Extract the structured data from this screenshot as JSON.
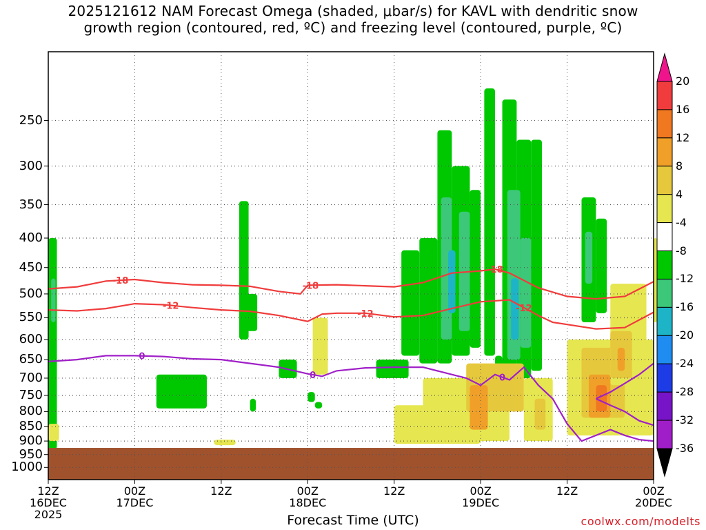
{
  "title": {
    "line1": "2025121612 NAM Forecast Omega (shaded, μbar/s) for KAVL with dendritic snow",
    "line2": "growth region (contoured, red, ºC) and freezing level (contoured, purple, ºC)"
  },
  "credit": "coolwx.com/modelts",
  "chart_data": {
    "type": "heatmap",
    "title": "2025121612 NAM Forecast Omega (shaded, μbar/s) for KAVL with dendritic snow growth region (contoured, red, ºC) and freezing level (contoured, purple, ºC)",
    "xlabel": "Forecast Time (UTC)",
    "ylabel": "",
    "x_range_hours": [
      0,
      84
    ],
    "y_range_hpa": [
      1050,
      190
    ],
    "y_scale": "log-pressure",
    "grid": true,
    "y_ticks": [
      "250",
      "300",
      "350",
      "400",
      "450",
      "500",
      "550",
      "600",
      "650",
      "700",
      "750",
      "800",
      "850",
      "900",
      "950",
      "1000"
    ],
    "x_ticks": [
      {
        "h": 0,
        "lines": [
          "12Z",
          "16DEC",
          "2025"
        ]
      },
      {
        "h": 12,
        "lines": [
          "00Z",
          "17DEC"
        ]
      },
      {
        "h": 24,
        "lines": [
          "12Z"
        ]
      },
      {
        "h": 36,
        "lines": [
          "00Z",
          "18DEC"
        ]
      },
      {
        "h": 48,
        "lines": [
          "12Z"
        ]
      },
      {
        "h": 60,
        "lines": [
          "00Z",
          "19DEC"
        ]
      },
      {
        "h": 72,
        "lines": [
          "12Z"
        ]
      },
      {
        "h": 84,
        "lines": [
          "00Z",
          "20DEC"
        ]
      }
    ],
    "colorbar": {
      "labels": [
        "20",
        "16",
        "12",
        "8",
        "4",
        "-4",
        "-8",
        "-12",
        "-16",
        "-20",
        "-24",
        "-28",
        "-32",
        "-36"
      ],
      "colors": [
        "#f0148c",
        "#f03c3c",
        "#f07820",
        "#f0a028",
        "#e6c83c",
        "#e6e650",
        "#ffffff",
        "#00c800",
        "#3cc878",
        "#1eb4c8",
        "#1e8cf0",
        "#1e3ce6",
        "#7814c8",
        "#a01ec8",
        "#aaaaaa",
        "#000000"
      ]
    },
    "omega_cells": [
      {
        "h0": 0,
        "h1": 1.2,
        "p0": 930,
        "p1": 400,
        "v": -8
      },
      {
        "h0": 0.4,
        "h1": 1,
        "p0": 560,
        "p1": 470,
        "v": -12
      },
      {
        "h0": 0,
        "h1": 1.5,
        "p0": 900,
        "p1": 840,
        "v": 4
      },
      {
        "h0": 15,
        "h1": 22,
        "p0": 790,
        "p1": 690,
        "v": -8
      },
      {
        "h0": 26.5,
        "h1": 27.8,
        "p0": 600,
        "p1": 345,
        "v": -8
      },
      {
        "h0": 27.5,
        "h1": 29,
        "p0": 580,
        "p1": 500,
        "v": -8
      },
      {
        "h0": 28,
        "h1": 28.8,
        "p0": 800,
        "p1": 760,
        "v": -8
      },
      {
        "h0": 32,
        "h1": 34.5,
        "p0": 700,
        "p1": 650,
        "v": -8
      },
      {
        "h0": 36,
        "h1": 37,
        "p0": 770,
        "p1": 740,
        "v": -8
      },
      {
        "h0": 37,
        "h1": 38,
        "p0": 790,
        "p1": 770,
        "v": -8
      },
      {
        "h0": 36.7,
        "h1": 38.8,
        "p0": 690,
        "p1": 550,
        "v": 4
      },
      {
        "h0": 45.5,
        "h1": 50,
        "p0": 700,
        "p1": 650,
        "v": -8
      },
      {
        "h0": 49,
        "h1": 51.5,
        "p0": 640,
        "p1": 420,
        "v": -8
      },
      {
        "h0": 51.5,
        "h1": 54,
        "p0": 660,
        "p1": 400,
        "v": -8
      },
      {
        "h0": 54,
        "h1": 56,
        "p0": 660,
        "p1": 260,
        "v": -8
      },
      {
        "h0": 56,
        "h1": 58.5,
        "p0": 640,
        "p1": 300,
        "v": -8
      },
      {
        "h0": 58.5,
        "h1": 60,
        "p0": 620,
        "p1": 330,
        "v": -8
      },
      {
        "h0": 60.5,
        "h1": 62,
        "p0": 640,
        "p1": 220,
        "v": -8
      },
      {
        "h0": 63,
        "h1": 65,
        "p0": 720,
        "p1": 230,
        "v": -8
      },
      {
        "h0": 65,
        "h1": 67,
        "p0": 700,
        "p1": 270,
        "v": -8
      },
      {
        "h0": 67,
        "h1": 68.5,
        "p0": 680,
        "p1": 270,
        "v": -8
      },
      {
        "h0": 54.5,
        "h1": 56,
        "p0": 600,
        "p1": 340,
        "v": -12
      },
      {
        "h0": 57,
        "h1": 58.5,
        "p0": 580,
        "p1": 360,
        "v": -12
      },
      {
        "h0": 63.7,
        "h1": 65.5,
        "p0": 650,
        "p1": 330,
        "v": -12
      },
      {
        "h0": 65.5,
        "h1": 67,
        "p0": 620,
        "p1": 400,
        "v": -12
      },
      {
        "h0": 55.5,
        "h1": 56.5,
        "p0": 540,
        "p1": 420,
        "v": -16
      },
      {
        "h0": 64.2,
        "h1": 65.3,
        "p0": 600,
        "p1": 470,
        "v": -16
      },
      {
        "h0": 74,
        "h1": 76,
        "p0": 560,
        "p1": 340,
        "v": -8
      },
      {
        "h0": 76,
        "h1": 77.5,
        "p0": 540,
        "p1": 370,
        "v": -8
      },
      {
        "h0": 74.5,
        "h1": 75.5,
        "p0": 480,
        "p1": 390,
        "v": -12
      },
      {
        "h0": 72,
        "h1": 73,
        "p0": 720,
        "p1": 600,
        "v": -8
      },
      {
        "h0": 62,
        "h1": 63,
        "p0": 740,
        "p1": 640,
        "v": -8
      },
      {
        "h0": 48,
        "h1": 60,
        "p0": 910,
        "p1": 780,
        "v": 4
      },
      {
        "h0": 52,
        "h1": 64,
        "p0": 900,
        "p1": 700,
        "v": 4
      },
      {
        "h0": 58,
        "h1": 66,
        "p0": 800,
        "p1": 660,
        "v": 8
      },
      {
        "h0": 58.5,
        "h1": 61,
        "p0": 860,
        "p1": 720,
        "v": 12
      },
      {
        "h0": 66,
        "h1": 70,
        "p0": 900,
        "p1": 700,
        "v": 4
      },
      {
        "h0": 67.5,
        "h1": 69,
        "p0": 860,
        "p1": 760,
        "v": 8
      },
      {
        "h0": 23,
        "h1": 26,
        "p0": 915,
        "p1": 895,
        "v": 4
      },
      {
        "h0": 72,
        "h1": 84,
        "p0": 880,
        "p1": 600,
        "v": 4
      },
      {
        "h0": 74,
        "h1": 80,
        "p0": 820,
        "p1": 620,
        "v": 8
      },
      {
        "h0": 78,
        "h1": 83,
        "p0": 720,
        "p1": 480,
        "v": 4
      },
      {
        "h0": 78,
        "h1": 81,
        "p0": 700,
        "p1": 580,
        "v": 8
      },
      {
        "h0": 79,
        "h1": 80,
        "p0": 680,
        "p1": 620,
        "v": 12
      },
      {
        "h0": 75,
        "h1": 78,
        "p0": 820,
        "p1": 690,
        "v": 12
      },
      {
        "h0": 76,
        "h1": 77.5,
        "p0": 800,
        "p1": 720,
        "v": 16
      },
      {
        "h0": 84,
        "h1": 84,
        "p0": 560,
        "p1": 400,
        "v": 4
      }
    ],
    "contours": [
      {
        "name": "-18",
        "color": "#f03c3c",
        "label": "-18",
        "h": [
          0,
          4,
          8,
          12,
          16,
          20,
          24,
          28,
          32,
          35,
          36,
          40,
          44,
          48,
          52,
          56,
          60,
          62,
          64,
          68,
          72,
          76,
          80,
          84
        ],
        "p": [
          490,
          486,
          475,
          472,
          478,
          482,
          483,
          485,
          495,
          500,
          483,
          482,
          484,
          486,
          478,
          460,
          456,
          453,
          460,
          488,
          505,
          510,
          505,
          476
        ],
        "label_h": [
          10,
          36.4,
          62
        ]
      },
      {
        "name": "-12",
        "color": "#f03c3c",
        "label": "-12",
        "h": [
          0,
          4,
          8,
          12,
          16,
          20,
          24,
          28,
          32,
          36,
          38,
          40,
          44,
          48,
          52,
          56,
          60,
          64,
          68,
          70,
          72,
          76,
          80,
          84
        ],
        "p": [
          533,
          535,
          530,
          520,
          522,
          528,
          533,
          536,
          545,
          558,
          542,
          540,
          540,
          548,
          545,
          530,
          516,
          512,
          545,
          560,
          565,
          575,
          572,
          538
        ],
        "label_h": [
          17,
          44,
          66
        ]
      },
      {
        "name": "0",
        "color": "#a020c8",
        "label": "0",
        "h": [
          0,
          4,
          8,
          12,
          16,
          20,
          24,
          28,
          32,
          36,
          38,
          40,
          44,
          48,
          52,
          56,
          58,
          60,
          62,
          64,
          66,
          68,
          70,
          72,
          74,
          76,
          78,
          80,
          82,
          84
        ],
        "p": [
          655,
          650,
          640,
          640,
          642,
          648,
          650,
          660,
          670,
          688,
          695,
          680,
          672,
          670,
          670,
          690,
          700,
          720,
          690,
          705,
          670,
          720,
          760,
          840,
          900,
          880,
          860,
          880,
          895,
          900
        ],
        "label_h": [
          13,
          36.7,
          63
        ]
      },
      {
        "name": "0b",
        "color": "#a020c8",
        "label": "",
        "h": [
          76,
          78,
          80,
          82,
          84
        ],
        "p": [
          760,
          780,
          800,
          830,
          845
        ],
        "label_h": []
      },
      {
        "name": "0c",
        "color": "#a020c8",
        "label": "",
        "h": [
          76,
          78,
          80,
          82,
          84
        ],
        "p": [
          760,
          740,
          715,
          690,
          660
        ],
        "label_h": []
      }
    ],
    "ground": {
      "p_top": 925,
      "color": "#a0522d"
    }
  }
}
